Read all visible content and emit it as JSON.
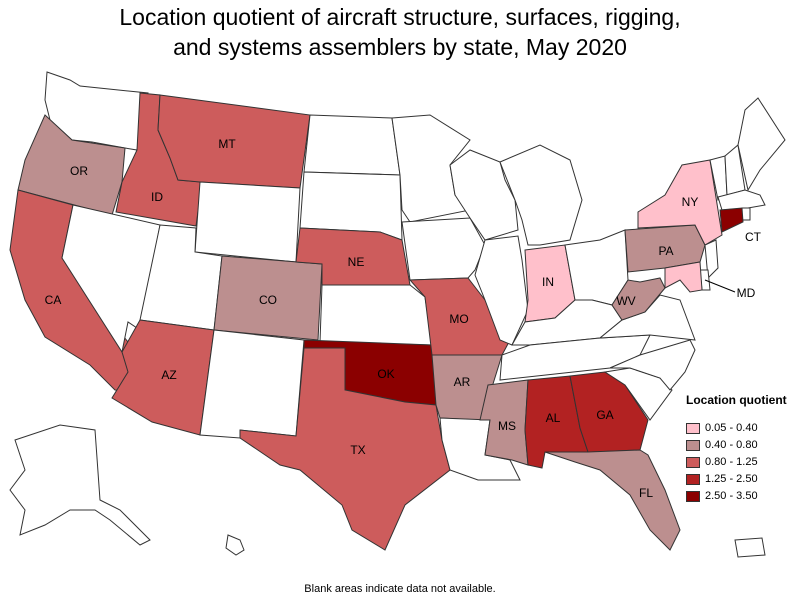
{
  "title": {
    "line1": "Location quotient of aircraft structure, surfaces, rigging,",
    "line2": "and systems assemblers by state, May 2020"
  },
  "legend": {
    "title": "Location quotient",
    "items": [
      {
        "label": "0.05 - 0.40",
        "color": "#ffc0cb"
      },
      {
        "label": "0.40 - 0.80",
        "color": "#bc8f8f"
      },
      {
        "label": "0.80 - 1.25",
        "color": "#cd5c5c"
      },
      {
        "label": "1.25 - 2.50",
        "color": "#b22222"
      },
      {
        "label": "2.50 - 3.50",
        "color": "#8b0000"
      }
    ]
  },
  "footnote": "Blank areas indicate data not available.",
  "states": [
    {
      "abbr": "WA",
      "label": "",
      "class": null
    },
    {
      "abbr": "OR",
      "label": "OR",
      "class": 1
    },
    {
      "abbr": "CA",
      "label": "CA",
      "class": 2
    },
    {
      "abbr": "NV",
      "label": "",
      "class": null
    },
    {
      "abbr": "ID",
      "label": "ID",
      "class": 2
    },
    {
      "abbr": "MT",
      "label": "MT",
      "class": 2
    },
    {
      "abbr": "WY",
      "label": "",
      "class": null
    },
    {
      "abbr": "UT",
      "label": "",
      "class": null
    },
    {
      "abbr": "AZ",
      "label": "AZ",
      "class": 2
    },
    {
      "abbr": "CO",
      "label": "CO",
      "class": 1
    },
    {
      "abbr": "NM",
      "label": "",
      "class": null
    },
    {
      "abbr": "ND",
      "label": "",
      "class": null
    },
    {
      "abbr": "SD",
      "label": "",
      "class": null
    },
    {
      "abbr": "NE",
      "label": "NE",
      "class": 2
    },
    {
      "abbr": "KS",
      "label": "",
      "class": null
    },
    {
      "abbr": "OK",
      "label": "OK",
      "class": 4
    },
    {
      "abbr": "TX",
      "label": "TX",
      "class": 2
    },
    {
      "abbr": "MN",
      "label": "",
      "class": null
    },
    {
      "abbr": "IA",
      "label": "",
      "class": null
    },
    {
      "abbr": "MO",
      "label": "MO",
      "class": 2
    },
    {
      "abbr": "AR",
      "label": "AR",
      "class": 1
    },
    {
      "abbr": "LA",
      "label": "",
      "class": null
    },
    {
      "abbr": "WI",
      "label": "",
      "class": null
    },
    {
      "abbr": "IL",
      "label": "",
      "class": null
    },
    {
      "abbr": "MI",
      "label": "",
      "class": null
    },
    {
      "abbr": "IN",
      "label": "IN",
      "class": 0
    },
    {
      "abbr": "OH",
      "label": "",
      "class": null
    },
    {
      "abbr": "KY",
      "label": "",
      "class": null
    },
    {
      "abbr": "TN",
      "label": "",
      "class": null
    },
    {
      "abbr": "MS",
      "label": "MS",
      "class": 1
    },
    {
      "abbr": "AL",
      "label": "AL",
      "class": 3
    },
    {
      "abbr": "GA",
      "label": "GA",
      "class": 3
    },
    {
      "abbr": "FL",
      "label": "FL",
      "class": 1
    },
    {
      "abbr": "SC",
      "label": "",
      "class": null
    },
    {
      "abbr": "NC",
      "label": "",
      "class": null
    },
    {
      "abbr": "VA",
      "label": "",
      "class": null
    },
    {
      "abbr": "WV",
      "label": "WV",
      "class": 1
    },
    {
      "abbr": "PA",
      "label": "PA",
      "class": 1
    },
    {
      "abbr": "NY",
      "label": "NY",
      "class": 0
    },
    {
      "abbr": "VT",
      "label": "",
      "class": null
    },
    {
      "abbr": "NH",
      "label": "",
      "class": null
    },
    {
      "abbr": "ME",
      "label": "",
      "class": null
    },
    {
      "abbr": "MA",
      "label": "",
      "class": null
    },
    {
      "abbr": "RI",
      "label": "",
      "class": null
    },
    {
      "abbr": "CT",
      "label": "CT",
      "class": 4
    },
    {
      "abbr": "NJ",
      "label": "",
      "class": null
    },
    {
      "abbr": "DE",
      "label": "",
      "class": null
    },
    {
      "abbr": "MD",
      "label": "MD",
      "class": 0
    },
    {
      "abbr": "AK",
      "label": "",
      "class": null
    },
    {
      "abbr": "HI",
      "label": "",
      "class": null
    },
    {
      "abbr": "PR",
      "label": "",
      "class": null
    }
  ]
}
